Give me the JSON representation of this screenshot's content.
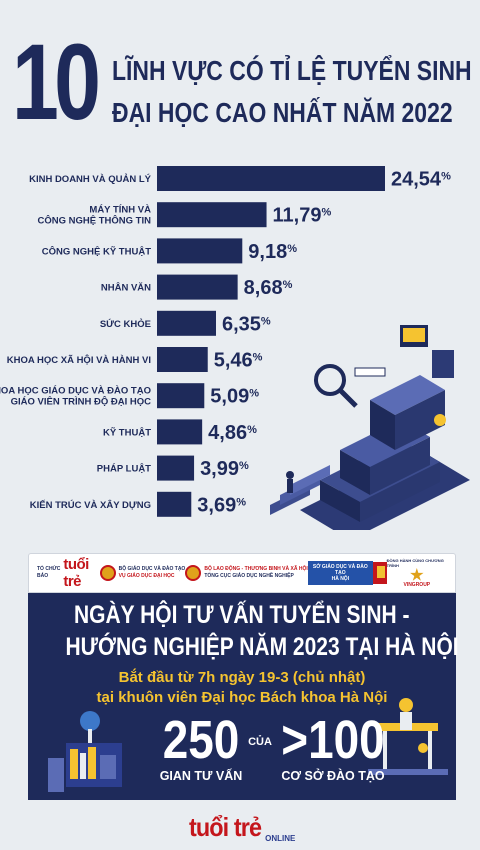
{
  "header": {
    "number": "10",
    "line1": "LĨNH VỰC CÓ TỈ LỆ TUYỂN SINH",
    "line2": "ĐẠI HỌC CAO NHẤT NĂM 2022"
  },
  "chart_data": {
    "type": "bar",
    "orientation": "horizontal",
    "title": "10 LĨNH VỰC CÓ TỈ LỆ TUYỂN SINH ĐẠI HỌC CAO NHẤT NĂM 2022",
    "unit": "%",
    "categories": [
      [
        "KINH DOANH VÀ QUẢN LÝ"
      ],
      [
        "MÁY TÍNH VÀ",
        "CÔNG NGHỆ THÔNG TIN"
      ],
      [
        "CÔNG NGHỆ KỸ THUẬT"
      ],
      [
        "NHÂN VĂN"
      ],
      [
        "SỨC KHỎE"
      ],
      [
        "KHOA HỌC XÃ HỘI VÀ HÀNH VI"
      ],
      [
        "KHOA HỌC GIÁO DỤC VÀ ĐÀO TẠO",
        "GIÁO VIÊN TRÌNH ĐỘ ĐẠI HỌC"
      ],
      [
        "KỸ THUẬT"
      ],
      [
        "PHÁP LUẬT"
      ],
      [
        "KIẾN TRÚC VÀ XÂY DỰNG"
      ]
    ],
    "values": [
      24.54,
      11.79,
      9.18,
      8.68,
      6.35,
      5.46,
      5.09,
      4.86,
      3.99,
      3.69
    ],
    "value_labels": [
      "24,54",
      "11,79",
      "9,18",
      "8,68",
      "6,35",
      "5,46",
      "5,09",
      "4,86",
      "3,99",
      "3,69"
    ],
    "percent_sign": "%",
    "bar_color": "#1e2a5a",
    "xlim": [
      0,
      24.54
    ],
    "grid": false,
    "legend": "none"
  },
  "logos": {
    "tuoitre_prefix": "TỔ CHỨC",
    "tuoitre_top": "BÁO",
    "tuoitre_name": "tuổi trẻ",
    "moet_line1": "BỘ GIÁO DỤC VÀ ĐÀO TẠO",
    "moet_line2": "VỤ GIÁO DỤC ĐẠI HỌC",
    "molisa_line1": "BỘ LAO ĐỘNG - THƯƠNG BINH VÀ XÃ HỘI",
    "molisa_line2": "TỔNG CỤC GIÁO DỤC NGHỀ NGHIỆP",
    "sgd_line1": "SỞ GIÁO DỤC VÀ ĐÀO TẠO",
    "sgd_line2": "HÀ NỘI",
    "vin_top": "ĐỒNG HÀNH CÙNG CHƯƠNG TRÌNH",
    "vin_name": "VINGROUP"
  },
  "event": {
    "title_line1": "NGÀY HỘI TƯ VẤN TUYỂN SINH -",
    "title_line2": "HƯỚNG NGHIỆP NĂM 2023 TẠI HÀ NỘI",
    "sub_line1": "Bắt đầu từ 7h ngày 19-3 (chủ nhật)",
    "sub_line2": "tại khuôn viên Đại học Bách khoa Hà Nội",
    "stat1_value": "250",
    "stat1_label": "GIAN TƯ VẤN",
    "connector": "CỦA",
    "stat2_value": ">100",
    "stat2_label": "CƠ SỞ ĐÀO TẠO"
  },
  "footer": {
    "brand": "tuổi trẻ",
    "suffix": "ONLINE"
  },
  "colors": {
    "navy": "#1e2a5a",
    "accent_yellow": "#f5c330",
    "brand_red": "#c4161c",
    "background": "#e9edf1"
  }
}
